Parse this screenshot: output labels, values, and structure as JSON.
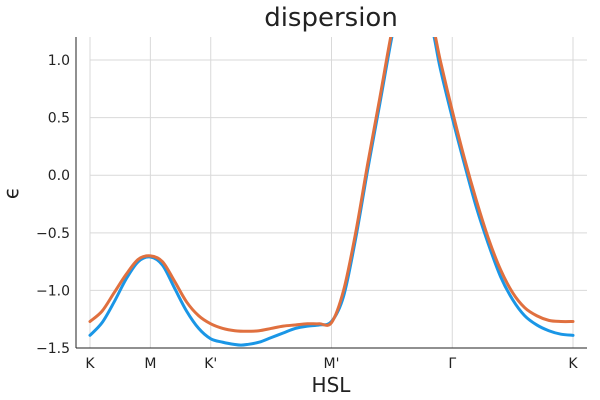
{
  "chart_data": {
    "type": "line",
    "title": "dispersion",
    "xlabel": "HSL",
    "ylabel": "ϵ",
    "xlim": [
      0,
      4
    ],
    "ylim": [
      -1.5,
      1.2
    ],
    "grid": true,
    "legend": "none",
    "x_ticks": [
      {
        "value": 0,
        "label": "K"
      },
      {
        "value": 0.5,
        "label": "M"
      },
      {
        "value": 1,
        "label": "K'"
      },
      {
        "value": 2,
        "label": "M'"
      },
      {
        "value": 3,
        "label": "Γ"
      },
      {
        "value": 4,
        "label": "K"
      }
    ],
    "y_ticks": [
      {
        "value": 1.0,
        "label": "1.0"
      },
      {
        "value": 0.5,
        "label": "0.5"
      },
      {
        "value": 0.0,
        "label": "0.0"
      },
      {
        "value": -0.5,
        "label": "−0.5"
      },
      {
        "value": -1.0,
        "label": "−1.0"
      },
      {
        "value": -1.5,
        "label": "−1.5"
      }
    ],
    "series": [
      {
        "color": "#1a96e6",
        "x": [
          0,
          0.1,
          0.2,
          0.3,
          0.4,
          0.5,
          0.6,
          0.7,
          0.8,
          0.9,
          1.0,
          1.1,
          1.2,
          1.25,
          1.3,
          1.4,
          1.5,
          1.6,
          1.7,
          1.8,
          1.9,
          2.0,
          2.1,
          2.2,
          2.3,
          2.4,
          2.5,
          2.55,
          2.8,
          2.85,
          2.9,
          3.0,
          3.1,
          3.2,
          3.3,
          3.4,
          3.5,
          3.6,
          3.7,
          3.8,
          3.9,
          4.0
        ],
        "y": [
          -1.39,
          -1.28,
          -1.1,
          -0.9,
          -0.75,
          -0.71,
          -0.78,
          -0.98,
          -1.18,
          -1.33,
          -1.42,
          -1.45,
          -1.47,
          -1.475,
          -1.47,
          -1.45,
          -1.41,
          -1.37,
          -1.33,
          -1.31,
          -1.3,
          -1.27,
          -1.05,
          -0.55,
          0.05,
          0.62,
          1.2,
          1.4,
          1.4,
          1.2,
          0.93,
          0.5,
          0.1,
          -0.28,
          -0.6,
          -0.88,
          -1.08,
          -1.22,
          -1.3,
          -1.35,
          -1.38,
          -1.39
        ]
      },
      {
        "color": "#e0703f",
        "x": [
          0,
          0.1,
          0.2,
          0.3,
          0.4,
          0.5,
          0.6,
          0.7,
          0.8,
          0.9,
          1.0,
          1.1,
          1.2,
          1.3,
          1.4,
          1.5,
          1.6,
          1.7,
          1.8,
          1.9,
          2.0,
          2.1,
          2.2,
          2.3,
          2.4,
          2.5,
          2.55,
          2.8,
          2.85,
          2.9,
          3.0,
          3.1,
          3.2,
          3.3,
          3.4,
          3.5,
          3.6,
          3.7,
          3.8,
          3.9,
          4.0
        ],
        "y": [
          -1.27,
          -1.18,
          -1.02,
          -0.86,
          -0.73,
          -0.7,
          -0.75,
          -0.92,
          -1.1,
          -1.22,
          -1.29,
          -1.33,
          -1.35,
          -1.355,
          -1.35,
          -1.33,
          -1.31,
          -1.3,
          -1.29,
          -1.29,
          -1.28,
          -1.0,
          -0.5,
          0.1,
          0.67,
          1.25,
          1.4,
          1.4,
          1.25,
          1.0,
          0.56,
          0.15,
          -0.22,
          -0.55,
          -0.82,
          -1.02,
          -1.15,
          -1.22,
          -1.26,
          -1.27,
          -1.27
        ]
      }
    ]
  }
}
